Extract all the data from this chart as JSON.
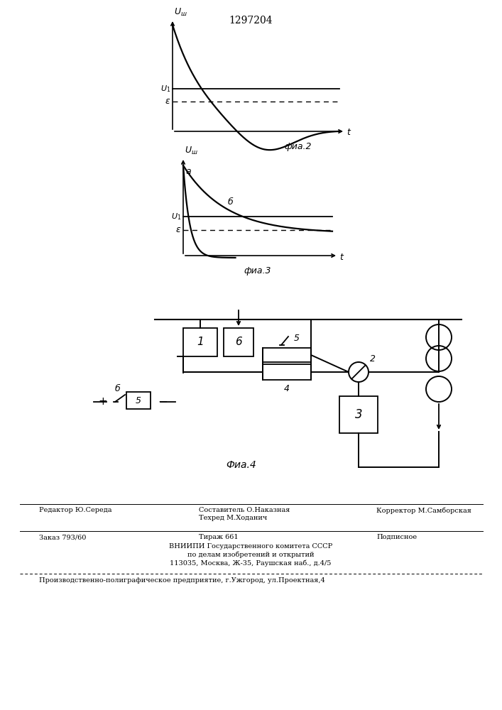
{
  "title_text": "1297204",
  "bg_color": "#ffffff",
  "line_color": "#000000",
  "fig2_label": "фиа.2",
  "fig3_label": "фиа.3",
  "fig4_label": "Фиа.4"
}
